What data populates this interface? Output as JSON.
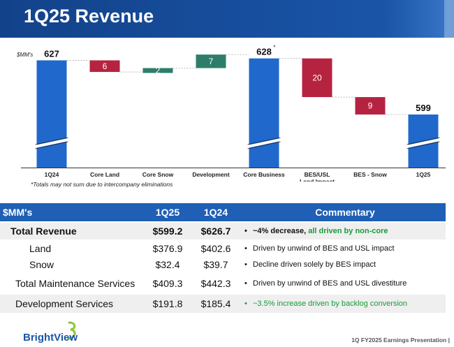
{
  "header": {
    "title": "1Q25 Revenue"
  },
  "chart_data": {
    "type": "waterfall",
    "units_label": "$MM's",
    "categories": [
      "1Q24",
      "Core Land",
      "Core Snow",
      "Development",
      "Core Business",
      "BES/USL Land Impact",
      "BES - Snow",
      "1Q25"
    ],
    "tick_labels": [
      [
        "1Q24"
      ],
      [
        "Core Land"
      ],
      [
        "Core Snow"
      ],
      [
        "Development"
      ],
      [
        "Core Business"
      ],
      [
        "BES/USL",
        "Land Impact"
      ],
      [
        "BES - Snow"
      ],
      [
        "1Q25"
      ]
    ],
    "bars": [
      {
        "kind": "total",
        "value": 627,
        "label": "627"
      },
      {
        "kind": "decrease",
        "value": 6,
        "label": "6"
      },
      {
        "kind": "increase",
        "value": 2,
        "label": "2"
      },
      {
        "kind": "increase",
        "value": 7,
        "label": "7"
      },
      {
        "kind": "total",
        "value": 628,
        "label": "628",
        "marker": "*"
      },
      {
        "kind": "decrease",
        "value": 20,
        "label": "20"
      },
      {
        "kind": "decrease",
        "value": 9,
        "label": "9"
      },
      {
        "kind": "total",
        "value": 599,
        "label": "599"
      }
    ],
    "axis_break": true,
    "colors": {
      "total": "#2068cc",
      "increase": "#2e7d6b",
      "decrease": "#b52340",
      "connector": "#aaaaaa"
    },
    "footnote": "*Totals may not sum due to intercompany eliminations"
  },
  "table": {
    "headers": {
      "metric": "$MM's",
      "q1_25": "1Q25",
      "q1_24": "1Q24",
      "commentary": "Commentary"
    },
    "rows": [
      {
        "label": "Total Revenue",
        "v25": "$599.2",
        "v24": "$626.7",
        "comment_prefix": "~4% decrease, ",
        "comment_green": "all driven by non-core"
      },
      {
        "label": "Land",
        "v25": "$376.9",
        "v24": "$402.6",
        "comment": "Driven by unwind of BES and USL impact"
      },
      {
        "label": "Snow",
        "v25": "$32.4",
        "v24": "$39.7",
        "comment": "Decline driven solely by BES impact"
      },
      {
        "label": "Total Maintenance Services",
        "v25": "$409.3",
        "v24": "$442.3",
        "comment": "Driven by unwind of BES and USL divestiture"
      },
      {
        "label": "Development Services",
        "v25": "$191.8",
        "v24": "$185.4",
        "comment": "~3.5% increase driven by backlog conversion"
      }
    ]
  },
  "footer": {
    "logo_text": "BrightView",
    "page_text": "1Q FY2025 Earnings Presentation |"
  }
}
